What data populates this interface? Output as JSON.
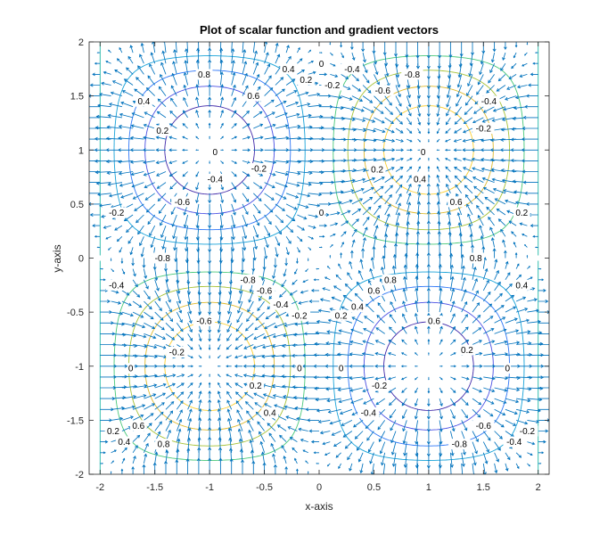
{
  "chart_data": {
    "type": "contour+quiver",
    "title": "Plot of scalar function and gradient vectors",
    "xlabel": "x-axis",
    "ylabel": "y-axis",
    "xlim": [
      -2.1,
      2.1
    ],
    "ylim": [
      -2,
      2
    ],
    "x_ticks": [
      "-2",
      "-1.5",
      "-1",
      "-0.5",
      "0",
      "0.5",
      "1",
      "1.5",
      "2"
    ],
    "y_ticks": [
      "-2",
      "-1.5",
      "-1",
      "-0.5",
      "0",
      "0.5",
      "1",
      "1.5",
      "2"
    ],
    "function": "z = sin(pi*x/2) * sin(pi*y/2)",
    "contour_levels": [
      -0.8,
      -0.6,
      -0.4,
      -0.2,
      0,
      0.2,
      0.4,
      0.6,
      0.8
    ],
    "contour_colors": {
      "-0.8": "#3e26a8",
      "-0.6": "#4a4fe3",
      "-0.4": "#2f77f7",
      "-0.2": "#17a2d8",
      "0": "#21b9a6",
      "0.2": "#48c878",
      "0.4": "#a7c237",
      "0.6": "#dfb92e",
      "0.8": "#fcce2e"
    },
    "quiver_color": "#0072bd",
    "quiver_grid": {
      "start": -2,
      "end": 2,
      "step": 0.1
    },
    "contour_labels": [
      {
        "text": "0.8",
        "x": -1.05,
        "y": 1.7
      },
      {
        "text": "0.6",
        "x": -0.6,
        "y": 1.5
      },
      {
        "text": "0.4",
        "x": -0.28,
        "y": 1.75
      },
      {
        "text": "0.2",
        "x": -0.12,
        "y": 1.65
      },
      {
        "text": "0",
        "x": 0.02,
        "y": 1.8
      },
      {
        "text": "-0.2",
        "x": 0.12,
        "y": 1.6
      },
      {
        "text": "-0.4",
        "x": 0.3,
        "y": 1.75
      },
      {
        "text": "-0.6",
        "x": 0.58,
        "y": 1.55
      },
      {
        "text": "-0.8",
        "x": 0.85,
        "y": 1.7
      },
      {
        "text": "-0.4",
        "x": 1.55,
        "y": 1.45
      },
      {
        "text": "0.4",
        "x": -1.6,
        "y": 1.45
      },
      {
        "text": "0.2",
        "x": -1.43,
        "y": 1.18
      },
      {
        "text": "-0.2",
        "x": 1.5,
        "y": 1.2
      },
      {
        "text": "0",
        "x": -0.95,
        "y": 0.98
      },
      {
        "text": "0",
        "x": 0.95,
        "y": 0.98
      },
      {
        "text": "-0.2",
        "x": -0.55,
        "y": 0.83
      },
      {
        "text": "0.2",
        "x": 0.53,
        "y": 0.82
      },
      {
        "text": "-0.4",
        "x": -0.95,
        "y": 0.73
      },
      {
        "text": "0.4",
        "x": 0.92,
        "y": 0.73
      },
      {
        "text": "-0.6",
        "x": -1.25,
        "y": 0.52
      },
      {
        "text": "0.6",
        "x": 1.25,
        "y": 0.52
      },
      {
        "text": "-0.2",
        "x": -1.85,
        "y": 0.42
      },
      {
        "text": "0.2",
        "x": 1.85,
        "y": 0.42
      },
      {
        "text": "0",
        "x": 0.02,
        "y": 0.42
      },
      {
        "text": "-0.8",
        "x": -1.43,
        "y": 0
      },
      {
        "text": "0.8",
        "x": 1.43,
        "y": 0
      },
      {
        "text": "-0.8",
        "x": -0.65,
        "y": -0.2
      },
      {
        "text": "0.8",
        "x": 0.65,
        "y": -0.2
      },
      {
        "text": "-0.6",
        "x": -0.5,
        "y": -0.3
      },
      {
        "text": "0.6",
        "x": 0.5,
        "y": -0.3
      },
      {
        "text": "-0.4",
        "x": -1.85,
        "y": -0.25
      },
      {
        "text": "0.4",
        "x": 1.85,
        "y": -0.25
      },
      {
        "text": "-0.4",
        "x": -0.35,
        "y": -0.43
      },
      {
        "text": "0.4",
        "x": 0.35,
        "y": -0.45
      },
      {
        "text": "-0.2",
        "x": -0.18,
        "y": -0.53
      },
      {
        "text": "0.2",
        "x": 0.2,
        "y": -0.53
      },
      {
        "text": "-0.6",
        "x": -1.05,
        "y": -0.58
      },
      {
        "text": "0.6",
        "x": 1.05,
        "y": -0.58
      },
      {
        "text": "-0.2",
        "x": -1.3,
        "y": -0.87
      },
      {
        "text": "0.2",
        "x": 1.35,
        "y": -0.85
      },
      {
        "text": "0",
        "x": -1.72,
        "y": -1.02
      },
      {
        "text": "0",
        "x": -0.18,
        "y": -1.02
      },
      {
        "text": "0",
        "x": 0.2,
        "y": -1.02
      },
      {
        "text": "0",
        "x": 1.72,
        "y": -1.02
      },
      {
        "text": "0.2",
        "x": -0.58,
        "y": -1.18
      },
      {
        "text": "-0.2",
        "x": 0.55,
        "y": -1.18
      },
      {
        "text": "0.4",
        "x": -0.45,
        "y": -1.43
      },
      {
        "text": "-0.4",
        "x": 0.45,
        "y": -1.43
      },
      {
        "text": "0.6",
        "x": -1.65,
        "y": -1.55
      },
      {
        "text": "-0.6",
        "x": 1.5,
        "y": -1.55
      },
      {
        "text": "0.2",
        "x": -1.88,
        "y": -1.6
      },
      {
        "text": "-0.2",
        "x": 1.9,
        "y": -1.6
      },
      {
        "text": "0.4",
        "x": -1.78,
        "y": -1.7
      },
      {
        "text": "-0.4",
        "x": 1.78,
        "y": -1.7
      },
      {
        "text": "0.8",
        "x": -1.42,
        "y": -1.72
      },
      {
        "text": "-0.8",
        "x": 1.28,
        "y": -1.72
      }
    ]
  }
}
